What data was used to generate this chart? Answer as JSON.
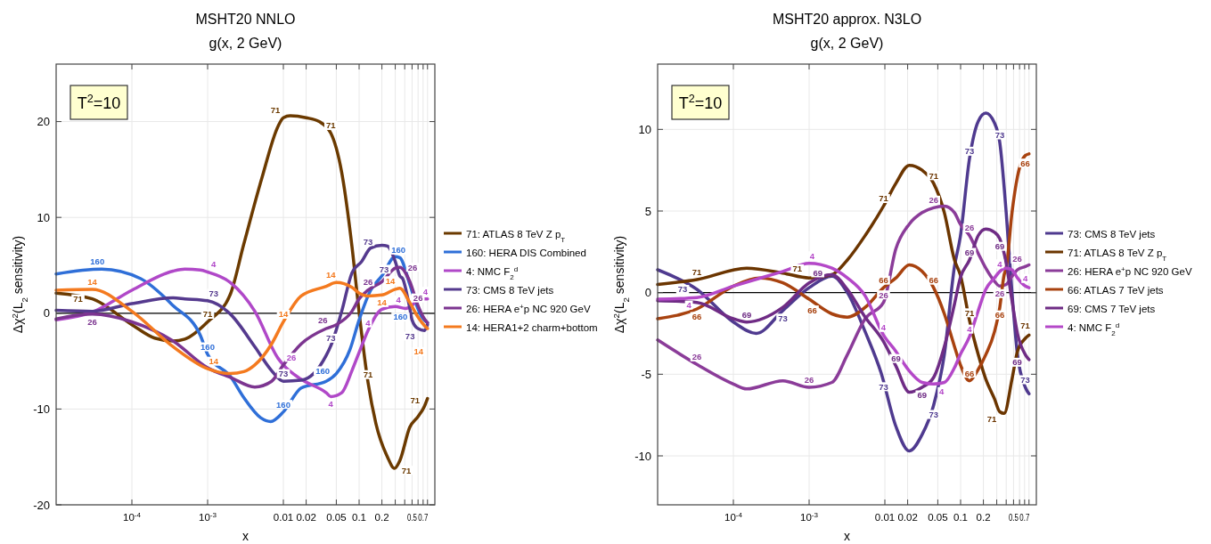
{
  "chart_data": [
    {
      "type": "line",
      "title": "MSHT20 NNLO",
      "subtitle": "g(x, 2 GeV)",
      "xlabel": "x",
      "ylabel": "Δχ$^{2}$(L$_{2}$ sensitivity)",
      "xlim": [
        1e-05,
        1
      ],
      "ylim": [
        -20,
        26
      ],
      "xticks": [
        {
          "value": 0.0001,
          "label": "10$^{-4}$"
        },
        {
          "value": 0.001,
          "label": "10$^{-3}$"
        },
        0.01,
        0.02,
        0.05,
        0.1,
        0.2,
        {
          "value": 0.3,
          "label": null
        },
        {
          "value": 0.4,
          "label": null
        },
        0.5,
        {
          "value": 0.6,
          "label": null
        },
        0.7,
        {
          "value": 0.8,
          "label": null
        }
      ],
      "yticks": [
        -20,
        -10,
        0,
        10,
        20
      ],
      "grid": true,
      "legend": "right",
      "log": "x",
      "ref_lines": [
        {
          "axis": "y",
          "value": 0,
          "color": "#000000"
        }
      ],
      "series": [
        {
          "name": "71: ATLAS 8 TeV Z p$_{T}$",
          "color": "#6b3a00",
          "x": [
            1e-05,
            3e-05,
            0.0001,
            0.0002,
            0.00035,
            0.0005,
            0.001,
            0.002,
            0.003,
            0.0052,
            0.0085,
            0.01,
            0.0123,
            0.02,
            0.0297,
            0.0423,
            0.0589,
            0.0804,
            0.1,
            0.131,
            0.1665,
            0.2367,
            0.293,
            0.3442,
            0.4669,
            0.5984,
            0.7296,
            0.8
          ],
          "values": [
            2.1,
            1.5,
            -1.2,
            -2.6,
            -2.9,
            -2.7,
            -0.9,
            2.0,
            7.2,
            14.1,
            19.5,
            20.4,
            20.6,
            20.4,
            20.0,
            18.8,
            14.7,
            7.0,
            0.1,
            -7.2,
            -11.5,
            -15.0,
            -16.2,
            -15.4,
            -11.9,
            -10.8,
            -9.7,
            -8.9
          ]
        },
        {
          "name": "160: HERA DIS Combined",
          "color": "#2f6fd8",
          "x": [
            1e-05,
            4e-05,
            0.000131,
            0.00035,
            0.0008,
            0.001,
            0.002,
            0.003,
            0.005,
            0.0068,
            0.01,
            0.0172,
            0.0368,
            0.05,
            0.0757,
            0.1,
            0.142,
            0.2,
            0.3,
            0.344,
            0.467,
            0.575,
            0.674,
            0.8
          ],
          "values": [
            4.1,
            4.6,
            3.6,
            0.8,
            -2.3,
            -4.3,
            -6.6,
            -8.8,
            -10.9,
            -11.3,
            -10.3,
            -7.8,
            -7.1,
            -6.3,
            -3.8,
            -0.7,
            2.4,
            3.9,
            5.9,
            5.8,
            3.0,
            0.8,
            -0.4,
            -1.0
          ]
        },
        {
          "name": "4: NMC F$_{2}$$^{d}$",
          "color": "#b048c8",
          "x": [
            1e-05,
            3e-05,
            0.0001,
            0.00035,
            0.0005,
            0.0008,
            0.001,
            0.002,
            0.0042,
            0.0085,
            0.01,
            0.0172,
            0.0368,
            0.0423,
            0.0589,
            0.0804,
            0.1,
            0.131,
            0.2,
            0.3,
            0.41,
            0.5,
            0.6,
            0.8
          ],
          "values": [
            -0.7,
            0.1,
            2.4,
            4.4,
            4.6,
            4.5,
            4.3,
            3.2,
            0.2,
            -4.7,
            -5.4,
            -6.9,
            -8.3,
            -8.7,
            -8.3,
            -6.0,
            -4.1,
            -1.8,
            0.4,
            0.7,
            0.5,
            0.8,
            1.5,
            1.5
          ]
        },
        {
          "name": "73: CMS 8 TeV jets",
          "color": "#553a8e",
          "x": [
            1e-05,
            3e-05,
            0.0001,
            0.00035,
            0.0005,
            0.001,
            0.002,
            0.0042,
            0.007,
            0.01,
            0.0172,
            0.0368,
            0.0423,
            0.0589,
            0.0804,
            0.108,
            0.142,
            0.2,
            0.2367,
            0.3,
            0.3442,
            0.376,
            0.4669,
            0.5,
            0.5984,
            0.7296,
            0.8
          ],
          "values": [
            0.3,
            0.2,
            1.0,
            1.6,
            1.5,
            1.3,
            -0.1,
            -3.5,
            -6.0,
            -7.1,
            -7.0,
            -4.4,
            -3.4,
            0.2,
            4.2,
            5.4,
            6.8,
            7.1,
            7.0,
            5.4,
            3.9,
            3.6,
            0.5,
            -0.7,
            -1.6,
            -1.8,
            -1.2
          ]
        },
        {
          "name": "26: HERA e$^{+}$p NC 920 GeV",
          "color": "#7c3590",
          "x": [
            1e-05,
            3e-05,
            0.0001,
            0.00035,
            0.001,
            0.002,
            0.0042,
            0.007,
            0.01,
            0.0172,
            0.0368,
            0.05,
            0.0804,
            0.1,
            0.131,
            0.2,
            0.3,
            0.3442,
            0.4669,
            0.5984,
            0.7296,
            0.8
          ],
          "values": [
            -0.6,
            -0.1,
            -0.9,
            -2.9,
            -5.7,
            -6.7,
            -7.7,
            -7.1,
            -5.4,
            -3.2,
            -1.6,
            -1.2,
            0.2,
            1.5,
            2.4,
            3.3,
            4.7,
            4.8,
            3.3,
            0.8,
            -0.6,
            -1.0
          ]
        },
        {
          "name": "14: HERA1+2 charm+bottom",
          "color": "#f47a1f",
          "x": [
            1e-05,
            3e-05,
            0.0001,
            0.00035,
            0.001,
            0.002,
            0.003,
            0.0042,
            0.007,
            0.01,
            0.0172,
            0.0368,
            0.05,
            0.0804,
            0.1,
            0.131,
            0.2,
            0.3,
            0.3442,
            0.4669,
            0.5984,
            0.7296,
            0.8
          ],
          "values": [
            2.4,
            2.5,
            0.2,
            -3.5,
            -5.8,
            -6.3,
            -6.1,
            -5.4,
            -3.2,
            -0.9,
            1.8,
            2.8,
            3.2,
            2.7,
            2.1,
            1.8,
            1.9,
            2.5,
            2.6,
            1.1,
            -0.4,
            -1.3,
            -1.6
          ]
        }
      ],
      "annotations": [
        "T$^{2}$=10",
        {
          "text": "71",
          "x": 3e-05,
          "y": 1.5
        },
        {
          "text": "71",
          "x": 0.001,
          "y": -0.9
        },
        {
          "text": "71",
          "x": 0.01,
          "y": 20.4
        },
        {
          "text": "71",
          "x": 0.0423,
          "y": 18.8
        },
        {
          "text": "71",
          "x": 0.131,
          "y": -7.2
        },
        {
          "text": "71",
          "x": 0.33,
          "y": -15.6
        },
        {
          "text": "71",
          "x": 0.7,
          "y": -9.9
        },
        {
          "text": "160",
          "x": 3.5e-05,
          "y": 4.6
        },
        {
          "text": "160",
          "x": 0.001,
          "y": -4.3
        },
        {
          "text": "160",
          "x": 0.01,
          "y": -10.3
        },
        {
          "text": "160",
          "x": 0.0423,
          "y": -6.8
        },
        {
          "text": "160",
          "x": 0.33,
          "y": 5.8
        },
        {
          "text": "160",
          "x": 0.674,
          "y": -0.4
        },
        {
          "text": "4",
          "x": 0.0012,
          "y": 4.3
        },
        {
          "text": "4",
          "x": 0.0423,
          "y": -8.7
        },
        {
          "text": "4",
          "x": 0.131,
          "y": -1.8
        },
        {
          "text": "4",
          "x": 0.33,
          "y": 0.6
        },
        {
          "text": "4",
          "x": 0.75,
          "y": 1.5
        },
        {
          "text": "73",
          "x": 0.0012,
          "y": 1.3
        },
        {
          "text": "73",
          "x": 0.01,
          "y": -7.1
        },
        {
          "text": "73",
          "x": 0.0423,
          "y": -3.4
        },
        {
          "text": "73",
          "x": 0.131,
          "y": 6.7
        },
        {
          "text": "73",
          "x": 0.33,
          "y": 3.8
        },
        {
          "text": "73",
          "x": 0.6,
          "y": -1.6
        },
        {
          "text": "26",
          "x": 3e-05,
          "y": -0.1
        },
        {
          "text": "26",
          "x": 0.01,
          "y": -5.4
        },
        {
          "text": "26",
          "x": 0.0423,
          "y": -1.5
        },
        {
          "text": "26",
          "x": 0.131,
          "y": 2.5
        },
        {
          "text": "26",
          "x": 0.33,
          "y": 4.8
        },
        {
          "text": "26",
          "x": 0.6,
          "y": 0.8
        },
        {
          "text": "14",
          "x": 3e-05,
          "y": 2.5
        },
        {
          "text": "14",
          "x": 0.0012,
          "y": -5.8
        },
        {
          "text": "14",
          "x": 0.01,
          "y": -0.9
        },
        {
          "text": "14",
          "x": 0.0423,
          "y": 3.2
        },
        {
          "text": "14",
          "x": 0.2,
          "y": 1.9
        },
        {
          "text": "14",
          "x": 0.33,
          "y": 2.6
        },
        {
          "text": "14",
          "x": 0.78,
          "y": -1.5
        }
      ]
    },
    {
      "type": "line",
      "title": "MSHT20 approx. N3LO",
      "subtitle": "g(x, 2 GeV)",
      "xlabel": "x",
      "ylabel": "Δχ$^{2}$(L$_{2}$ sensitivity)",
      "xlim": [
        1e-05,
        1
      ],
      "ylim": [
        -13,
        14
      ],
      "xticks": [
        {
          "value": 0.0001,
          "label": "10$^{-4}$"
        },
        {
          "value": 0.001,
          "label": "10$^{-3}$"
        },
        0.01,
        0.02,
        0.05,
        0.1,
        0.2,
        {
          "value": 0.3,
          "label": null
        },
        {
          "value": 0.4,
          "label": null
        },
        0.5,
        {
          "value": 0.6,
          "label": null
        },
        0.7,
        {
          "value": 0.8,
          "label": null
        }
      ],
      "yticks": [
        -10,
        -5,
        0,
        5,
        10
      ],
      "grid": true,
      "legend": "right",
      "log": "x",
      "ref_lines": [
        {
          "axis": "y",
          "value": 0,
          "color": "#000000"
        }
      ],
      "series": [
        {
          "name": "73: CMS 8 TeV jets",
          "color": "#4f3a8f",
          "x": [
            1e-05,
            3.3e-05,
            0.0001,
            0.0002,
            0.00045,
            0.001,
            0.002,
            0.0032,
            0.0055,
            0.0089,
            0.014,
            0.021,
            0.031,
            0.044,
            0.061,
            0.083,
            0.099,
            0.131,
            0.171,
            0.215,
            0.28,
            0.329,
            0.4,
            0.477,
            0.563,
            0.715,
            0.8
          ],
          "values": [
            1.4,
            0.2,
            -1.8,
            -2.5,
            -1.1,
            0.3,
            1.0,
            0,
            -2.4,
            -4.9,
            -8.2,
            -9.7,
            -8.7,
            -6.9,
            -3.8,
            1.6,
            3.4,
            8.2,
            10.5,
            11.0,
            10.4,
            9.2,
            4.9,
            0,
            -3.8,
            -5.8,
            -6.2
          ]
        },
        {
          "name": "71: ATLAS 8 TeV Z p$_{T}$",
          "color": "#6b3500",
          "x": [
            1e-05,
            3.3e-05,
            0.00015,
            0.00045,
            0.001,
            0.002,
            0.0032,
            0.0055,
            0.0096,
            0.014,
            0.021,
            0.031,
            0.044,
            0.061,
            0.083,
            0.099,
            0.131,
            0.171,
            0.215,
            0.28,
            0.329,
            0.376,
            0.477,
            0.563,
            0.715,
            0.8
          ],
          "values": [
            0.5,
            0.8,
            1.5,
            1.2,
            0.9,
            1.1,
            2.0,
            3.5,
            5.3,
            6.7,
            7.8,
            7.5,
            6.7,
            4.9,
            2.0,
            1.1,
            -1.7,
            -3.8,
            -5.3,
            -6.5,
            -7.3,
            -7.4,
            -5.3,
            -3.6,
            -2.8,
            -2.6
          ]
        },
        {
          "name": "26: HERA e$^{+}$p NC 920 GeV",
          "color": "#8b3c99",
          "x": [
            1e-05,
            3.3e-05,
            0.0001,
            0.00015,
            0.00045,
            0.001,
            0.002,
            0.0032,
            0.0055,
            0.0096,
            0.014,
            0.021,
            0.031,
            0.044,
            0.061,
            0.083,
            0.099,
            0.131,
            0.171,
            0.215,
            0.28,
            0.329,
            0.4,
            0.477,
            0.563,
            0.715,
            0.8
          ],
          "values": [
            -2.9,
            -4.4,
            -5.6,
            -5.9,
            -5.4,
            -5.8,
            -5.5,
            -3.8,
            -1.6,
            -0.6,
            2.7,
            4.2,
            4.9,
            5.2,
            5.3,
            4.9,
            4.2,
            3.5,
            2.4,
            1.5,
            0.7,
            0.4,
            0.5,
            1.0,
            1.4,
            1.6,
            1.7
          ]
        },
        {
          "name": "66: ATLAS 7 TeV jets",
          "color": "#a8420f",
          "x": [
            1e-05,
            3.3e-05,
            0.0001,
            0.00022,
            0.00045,
            0.001,
            0.002,
            0.0032,
            0.0055,
            0.0096,
            0.014,
            0.021,
            0.031,
            0.044,
            0.061,
            0.083,
            0.099,
            0.131,
            0.171,
            0.215,
            0.28,
            0.329,
            0.376,
            0.4,
            0.477,
            0.563,
            0.715,
            0.8
          ],
          "values": [
            -1.6,
            -1.0,
            0.4,
            0.9,
            0.6,
            -0.4,
            -1.3,
            -1.5,
            -0.9,
            0.3,
            0.9,
            1.7,
            1.3,
            0.3,
            -1.3,
            -3.3,
            -4.4,
            -5.4,
            -4.7,
            -3.8,
            -2.4,
            -0.9,
            1.1,
            1.5,
            4.9,
            7.1,
            8.4,
            8.5
          ]
        },
        {
          "name": "69: CMS 7 TeV jets",
          "color": "#6f2c85",
          "x": [
            1e-05,
            3.3e-05,
            0.0001,
            0.00015,
            0.00045,
            0.001,
            0.002,
            0.0032,
            0.0055,
            0.0096,
            0.014,
            0.021,
            0.031,
            0.044,
            0.061,
            0.083,
            0.099,
            0.131,
            0.171,
            0.215,
            0.28,
            0.329,
            0.4,
            0.477,
            0.563,
            0.715,
            0.8
          ],
          "values": [
            -0.5,
            -0.6,
            -1.6,
            -1.8,
            -0.9,
            0.6,
            1.1,
            0.2,
            -1.5,
            -3.0,
            -4.5,
            -6.1,
            -5.8,
            -5.2,
            -3.3,
            -0.7,
            0.9,
            2.0,
            3.5,
            3.9,
            3.7,
            3.3,
            1.8,
            -0.5,
            -2.5,
            -3.8,
            -4.1
          ]
        },
        {
          "name": "4: NMC F$_{2}$$^{d}$",
          "color": "#b448c8",
          "x": [
            1e-05,
            3.3e-05,
            0.0001,
            0.00045,
            0.001,
            0.002,
            0.0032,
            0.0055,
            0.0096,
            0.014,
            0.021,
            0.031,
            0.044,
            0.061,
            0.083,
            0.099,
            0.131,
            0.171,
            0.215,
            0.28,
            0.329,
            0.4,
            0.477,
            0.563,
            0.715,
            0.8
          ],
          "values": [
            -0.4,
            -0.3,
            0.4,
            1.3,
            1.8,
            1.5,
            0.9,
            -0.2,
            -2.6,
            -3.6,
            -4.8,
            -5.5,
            -5.6,
            -5.5,
            -4.6,
            -3.8,
            -2.7,
            -1.1,
            0.2,
            0.9,
            1.3,
            1.5,
            1.4,
            0.9,
            0.4,
            0.3
          ]
        }
      ],
      "annotations": [
        "T$^{2}$=10",
        {
          "text": "73",
          "x": 3.3e-05,
          "y": 0.2
        },
        {
          "text": "73",
          "x": 0.00045,
          "y": -1.1
        },
        {
          "text": "73",
          "x": 0.0096,
          "y": -5.3
        },
        {
          "text": "73",
          "x": 0.044,
          "y": -7.0
        },
        {
          "text": "73",
          "x": 0.131,
          "y": 8.2
        },
        {
          "text": "73",
          "x": 0.329,
          "y": 9.2
        },
        {
          "text": "73",
          "x": 0.715,
          "y": -5.8
        },
        {
          "text": "71",
          "x": 3.3e-05,
          "y": 0.8
        },
        {
          "text": "71",
          "x": 0.0007,
          "y": 1.0
        },
        {
          "text": "71",
          "x": 0.0096,
          "y": 5.3
        },
        {
          "text": "71",
          "x": 0.044,
          "y": 6.7
        },
        {
          "text": "71",
          "x": 0.131,
          "y": -1.7
        },
        {
          "text": "71",
          "x": 0.329,
          "y": -7.3
        },
        {
          "text": "71",
          "x": 0.715,
          "y": -2.8
        },
        {
          "text": "26",
          "x": 3.3e-05,
          "y": -4.4
        },
        {
          "text": "26",
          "x": 0.001,
          "y": -5.8
        },
        {
          "text": "26",
          "x": 0.0096,
          "y": -0.6
        },
        {
          "text": "26",
          "x": 0.044,
          "y": 5.2
        },
        {
          "text": "26",
          "x": 0.131,
          "y": 3.5
        },
        {
          "text": "26",
          "x": 0.329,
          "y": 0.4
        },
        {
          "text": "26",
          "x": 0.715,
          "y": 1.6
        },
        {
          "text": "66",
          "x": 3.3e-05,
          "y": -1.0
        },
        {
          "text": "66",
          "x": 0.0011,
          "y": -0.6
        },
        {
          "text": "66",
          "x": 0.0096,
          "y": 0.3
        },
        {
          "text": "66",
          "x": 0.044,
          "y": 0.3
        },
        {
          "text": "66",
          "x": 0.131,
          "y": -5.4
        },
        {
          "text": "66",
          "x": 0.329,
          "y": -0.9
        },
        {
          "text": "66",
          "x": 0.715,
          "y": 8.4
        },
        {
          "text": "69",
          "x": 0.00015,
          "y": -1.8
        },
        {
          "text": "69",
          "x": 0.0013,
          "y": 0.75
        },
        {
          "text": "69",
          "x": 0.014,
          "y": -4.5
        },
        {
          "text": "69",
          "x": 0.031,
          "y": -5.8
        },
        {
          "text": "69",
          "x": 0.131,
          "y": 2.0
        },
        {
          "text": "69",
          "x": 0.329,
          "y": 3.3
        },
        {
          "text": "69",
          "x": 0.715,
          "y": -3.8
        },
        {
          "text": "4",
          "x": 3.3e-05,
          "y": -0.3
        },
        {
          "text": "4",
          "x": 0.0011,
          "y": 1.8
        },
        {
          "text": "4",
          "x": 0.0096,
          "y": -2.6
        },
        {
          "text": "4",
          "x": 0.044,
          "y": -5.6
        },
        {
          "text": "4",
          "x": 0.131,
          "y": -2.7
        },
        {
          "text": "4",
          "x": 0.329,
          "y": 1.3
        },
        {
          "text": "4",
          "x": 0.715,
          "y": 0.4
        }
      ]
    }
  ]
}
